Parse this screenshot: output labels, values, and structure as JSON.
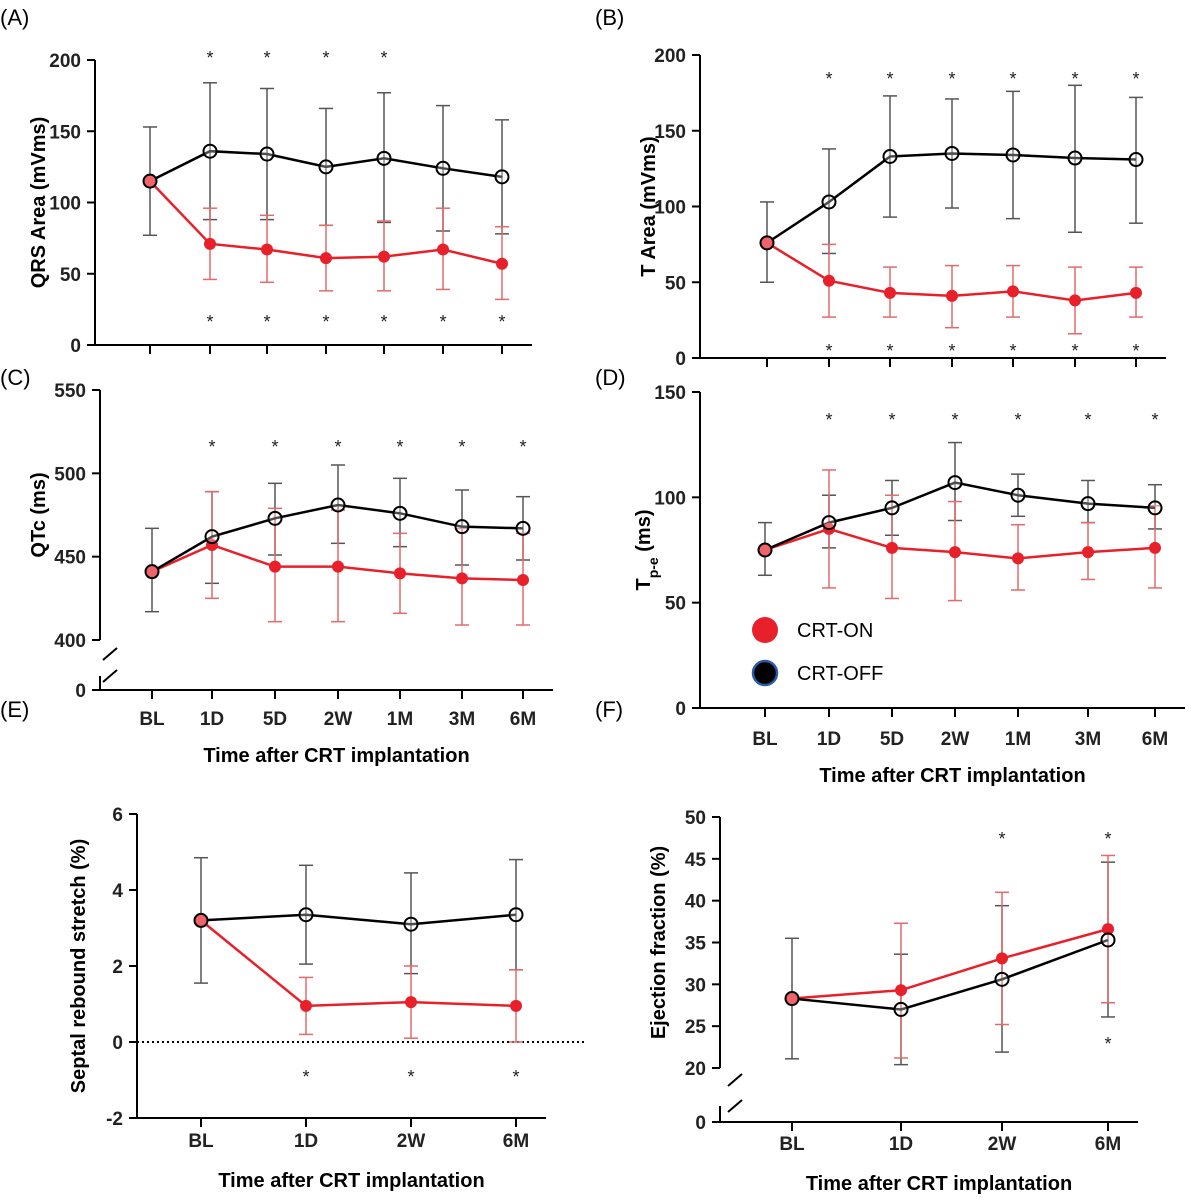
{
  "figure": {
    "colors": {
      "on": "#e8202a",
      "on_error": "#e36a6a",
      "off": "#000000",
      "off_error": "#555555",
      "axis": "#000000"
    },
    "legend": [
      {
        "label": "CRT-ON",
        "marker": "filled-red-circle"
      },
      {
        "label": "CRT-OFF",
        "marker": "black-circle-blue-outline"
      }
    ]
  },
  "chart_data": [
    {
      "id": "A",
      "letter": "(A)",
      "type": "line",
      "ylabel": "QRS Area (mVms)",
      "xlabel": "",
      "categories": [
        "BL",
        "1D",
        "5D",
        "2W",
        "1M",
        "3M",
        "6M"
      ],
      "ylim": [
        0,
        200
      ],
      "yticks": [
        0,
        50,
        100,
        150,
        200
      ],
      "axis_break": false,
      "series": [
        {
          "name": "CRT-OFF",
          "values": [
            115,
            136,
            134,
            125,
            131,
            124,
            118
          ],
          "err_up": [
            153,
            184,
            180,
            166,
            177,
            168,
            158
          ],
          "err_low": [
            77,
            88,
            88,
            84,
            86,
            80,
            78
          ]
        },
        {
          "name": "CRT-ON",
          "values": [
            115,
            71,
            67,
            61,
            62,
            67,
            57
          ],
          "err_up": [
            115,
            96,
            91,
            84,
            87,
            96,
            83
          ],
          "err_low": [
            115,
            46,
            44,
            38,
            38,
            39,
            32
          ]
        }
      ],
      "stars_top": [
        "1D",
        "5D",
        "2W",
        "1M"
      ],
      "stars_bottom": [
        "1D",
        "5D",
        "2W",
        "1M",
        "3M",
        "6M"
      ]
    },
    {
      "id": "B",
      "letter": "(B)",
      "type": "line",
      "ylabel": "T Area (mVms)",
      "xlabel": "",
      "categories": [
        "BL",
        "1D",
        "5D",
        "2W",
        "1M",
        "3M",
        "6M"
      ],
      "ylim": [
        0,
        200
      ],
      "yticks": [
        0,
        50,
        100,
        150,
        200
      ],
      "axis_break": false,
      "series": [
        {
          "name": "CRT-OFF",
          "values": [
            76,
            103,
            133,
            135,
            134,
            132,
            131
          ],
          "err_up": [
            103,
            138,
            173,
            171,
            176,
            180,
            172
          ],
          "err_low": [
            50,
            69,
            93,
            99,
            92,
            83,
            89
          ]
        },
        {
          "name": "CRT-ON",
          "values": [
            76,
            51,
            43,
            41,
            44,
            38,
            43
          ],
          "err_up": [
            76,
            75,
            60,
            61,
            61,
            60,
            60
          ],
          "err_low": [
            76,
            27,
            27,
            20,
            27,
            16,
            27
          ]
        }
      ],
      "stars_top": [
        "1D",
        "5D",
        "2W",
        "1M",
        "3M",
        "6M"
      ],
      "stars_bottom": [
        "1D",
        "5D",
        "2W",
        "1M",
        "3M",
        "6M"
      ]
    },
    {
      "id": "C",
      "letter": "(C)",
      "type": "line",
      "ylabel": "QTc (ms)",
      "xlabel": "Time after CRT implantation",
      "categories": [
        "BL",
        "1D",
        "5D",
        "2W",
        "1M",
        "3M",
        "6M"
      ],
      "ylim": [
        400,
        550
      ],
      "yticks": [
        400,
        450,
        500,
        550
      ],
      "axis_break": true,
      "break_label": "0",
      "series": [
        {
          "name": "CRT-OFF",
          "values": [
            441,
            462,
            473,
            481,
            476,
            468,
            467
          ],
          "err_up": [
            467,
            489,
            494,
            505,
            497,
            490,
            486
          ],
          "err_low": [
            417,
            434,
            451,
            458,
            456,
            445,
            448
          ]
        },
        {
          "name": "CRT-ON",
          "values": [
            441,
            457,
            444,
            444,
            440,
            437,
            436
          ],
          "err_up": [
            441,
            489,
            479,
            478,
            464,
            467,
            464
          ],
          "err_low": [
            441,
            425,
            411,
            411,
            416,
            409,
            409
          ]
        }
      ],
      "stars_top": [
        "1D",
        "5D",
        "2W",
        "1M",
        "3M",
        "6M"
      ],
      "stars_bottom": []
    },
    {
      "id": "D",
      "letter": "(D)",
      "type": "line",
      "ylabel": "T",
      "ylabel_sub": "p-e",
      "ylabel_suffix": " (ms)",
      "xlabel": "Time after CRT implantation",
      "categories": [
        "BL",
        "1D",
        "5D",
        "2W",
        "1M",
        "3M",
        "6M"
      ],
      "ylim": [
        0,
        150
      ],
      "yticks": [
        0,
        50,
        100,
        150
      ],
      "axis_break": false,
      "series": [
        {
          "name": "CRT-OFF",
          "values": [
            75,
            88,
            95,
            107,
            101,
            97,
            95
          ],
          "err_up": [
            88,
            101,
            108,
            126,
            111,
            108,
            106
          ],
          "err_low": [
            63,
            76,
            82,
            89,
            91,
            88,
            85
          ]
        },
        {
          "name": "CRT-ON",
          "values": [
            75,
            85,
            76,
            74,
            71,
            74,
            76
          ],
          "err_up": [
            75,
            113,
            101,
            98,
            87,
            88,
            96
          ],
          "err_low": [
            75,
            57,
            52,
            51,
            56,
            61,
            57
          ]
        }
      ],
      "stars_top": [
        "1D",
        "5D",
        "2W",
        "1M",
        "3M",
        "6M"
      ],
      "stars_bottom": [],
      "legend": true
    },
    {
      "id": "E",
      "letter": "(E)",
      "type": "line",
      "ylabel": "Septal rebound stretch (%)",
      "xlabel": "Time after CRT implantation",
      "categories": [
        "BL",
        "1D",
        "2W",
        "6M"
      ],
      "ylim": [
        -2,
        6
      ],
      "yticks": [
        -2,
        0,
        2,
        4,
        6
      ],
      "axis_break": false,
      "zero_line": true,
      "series": [
        {
          "name": "CRT-OFF",
          "values": [
            3.2,
            3.35,
            3.1,
            3.35
          ],
          "err_up": [
            4.85,
            4.65,
            4.45,
            4.8
          ],
          "err_low": [
            1.55,
            2.05,
            1.8,
            1.9
          ]
        },
        {
          "name": "CRT-ON",
          "values": [
            3.2,
            0.95,
            1.05,
            0.95
          ],
          "err_up": [
            3.2,
            1.7,
            2.0,
            1.9
          ],
          "err_low": [
            3.2,
            0.2,
            0.1,
            0.0
          ]
        }
      ],
      "stars_top": [],
      "stars_bottom": [
        "1D",
        "2W",
        "6M"
      ]
    },
    {
      "id": "F",
      "letter": "(F)",
      "type": "line",
      "ylabel": "Ejection fraction (%)",
      "xlabel": "Time after CRT implantation",
      "categories": [
        "BL",
        "1D",
        "2W",
        "6M"
      ],
      "ylim": [
        20,
        50
      ],
      "yticks": [
        20,
        25,
        30,
        35,
        40,
        45,
        50
      ],
      "axis_break": true,
      "break_label": "0",
      "series": [
        {
          "name": "CRT-OFF",
          "values": [
            28.3,
            27,
            30.6,
            35.3
          ],
          "err_up": [
            35.5,
            33.6,
            39.4,
            44.6
          ],
          "err_low": [
            21.1,
            20.4,
            21.9,
            26.1
          ]
        },
        {
          "name": "CRT-ON",
          "values": [
            28.3,
            29.3,
            33.1,
            36.6
          ],
          "err_up": [
            28.3,
            37.3,
            41.0,
            45.4
          ],
          "err_low": [
            28.3,
            21.2,
            25.2,
            27.8
          ]
        }
      ],
      "stars_top": [
        "2W",
        "6M"
      ],
      "stars_bottom": [
        "6M"
      ]
    }
  ]
}
